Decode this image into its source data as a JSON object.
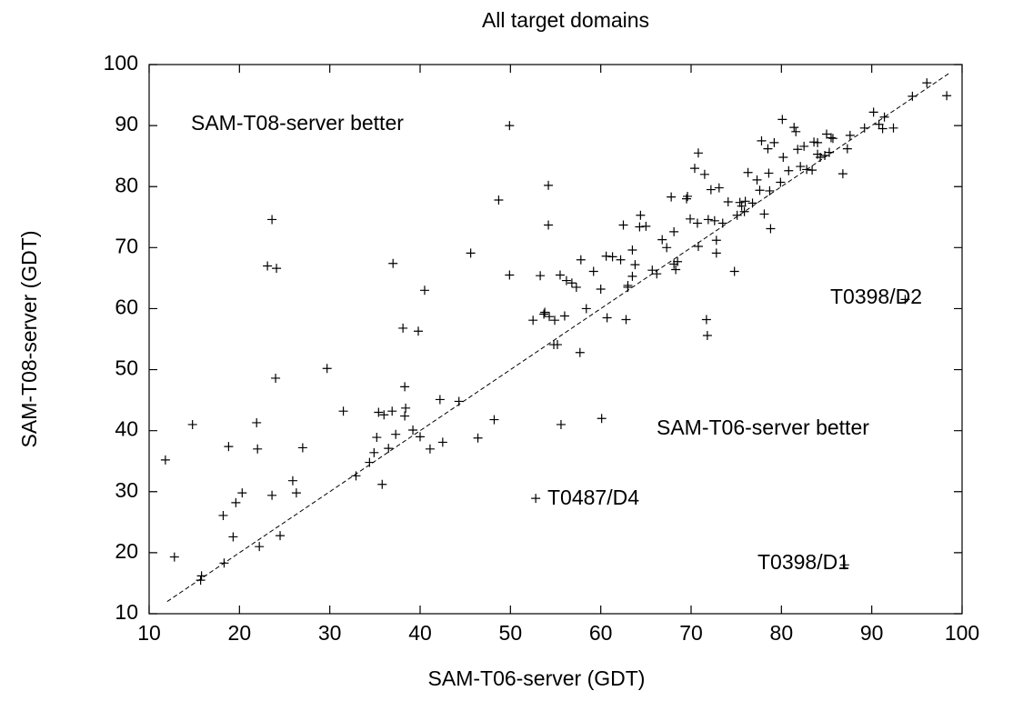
{
  "chart_data": {
    "type": "scatter",
    "title": "All target domains",
    "xlabel": "SAM-T06-server (GDT)",
    "ylabel": "SAM-T08-server (GDT)",
    "xlim": [
      10,
      100
    ],
    "ylim": [
      10,
      100
    ],
    "xticks": [
      10,
      20,
      30,
      40,
      50,
      60,
      70,
      80,
      90,
      100
    ],
    "yticks": [
      10,
      20,
      30,
      40,
      50,
      60,
      70,
      80,
      90,
      100
    ],
    "color": "#000000",
    "reference_line": {
      "x": [
        12,
        98.5
      ],
      "y": [
        12,
        98.5
      ]
    },
    "annotations": [
      "SAM-T08-server better",
      "SAM-T06-server better",
      "T0398/D2",
      "T0487/D4",
      "T0398/D1"
    ],
    "x": [
      11.8,
      12.8,
      14.8,
      15.7,
      15.8,
      18.2,
      18.3,
      18.8,
      19.3,
      19.6,
      20.3,
      21.9,
      22,
      22.2,
      23.1,
      23.6,
      23.6,
      24,
      24.1,
      24.5,
      25.9,
      26.3,
      27,
      29.7,
      31.5,
      32.9,
      34.4,
      34.9,
      35.2,
      35.4,
      35.8,
      36,
      36.5,
      36.9,
      37,
      37.3,
      38.1,
      38.3,
      38.3,
      38.4,
      39.2,
      39.8,
      40,
      40.5,
      41.1,
      42.2,
      42.5,
      44.3,
      45.6,
      46.4,
      48.2,
      48.7,
      49.9,
      49.9,
      52.5,
      52.8,
      53.3,
      53.7,
      53.8,
      54.2,
      54.2,
      54.3,
      54.8,
      54.9,
      55.2,
      55.5,
      55.6,
      56,
      56.2,
      56.8,
      57.3,
      57.8,
      57.7,
      58.4,
      59.2,
      60,
      60.1,
      60.6,
      60.7,
      61.3,
      62.2,
      62.5,
      62.8,
      63,
      63,
      63.5,
      63.5,
      63.8,
      64.3,
      64.4,
      65,
      65.7,
      66.2,
      66.8,
      67.3,
      67.8,
      68.1,
      68.1,
      68.3,
      68.5,
      69.5,
      69.6,
      69.9,
      70.4,
      70.7,
      70.8,
      70.8,
      71.5,
      71.7,
      71.8,
      71.9,
      72.2,
      72.6,
      72.8,
      72.8,
      73.1,
      73.5,
      74.1,
      74.8,
      75.1,
      75.4,
      75.6,
      75.9,
      76,
      76.3,
      76.8,
      77.3,
      77.6,
      77.8,
      78.1,
      78.5,
      78.6,
      78.7,
      78.8,
      79.2,
      79.9,
      80.1,
      80.2,
      80.8,
      81.4,
      81.6,
      81.8,
      82.1,
      82.5,
      82.8,
      83.4,
      83.6,
      84,
      84,
      84.3,
      84.8,
      85,
      85.3,
      85.5,
      85.7,
      86.8,
      87.3,
      87.6,
      87,
      89.2,
      90.2,
      90.8,
      91.2,
      91.4,
      92.4,
      93.7,
      94.5,
      96.1,
      98.3
    ],
    "y": [
      35.2,
      19.3,
      41,
      15.5,
      16.2,
      26.1,
      18.3,
      37.4,
      22.6,
      28.2,
      29.8,
      41.3,
      37,
      21,
      67,
      74.6,
      29.4,
      48.6,
      66.6,
      22.8,
      31.8,
      29.8,
      37.2,
      50.2,
      43.2,
      32.6,
      34.8,
      36.4,
      38.9,
      43,
      31.2,
      42.6,
      37.1,
      43.2,
      67.4,
      39.4,
      56.8,
      42.4,
      47.2,
      43.7,
      40.1,
      56.3,
      39,
      63,
      37,
      45.1,
      38.1,
      44.8,
      69.1,
      38.8,
      41.8,
      77.8,
      90,
      65.5,
      58.1,
      28.9,
      65.4,
      59.1,
      59.4,
      80.2,
      73.7,
      58.7,
      54.1,
      58.1,
      54.1,
      65.5,
      41,
      58.8,
      64.6,
      64.2,
      63.5,
      68,
      52.8,
      60,
      66.1,
      63.2,
      42,
      68.6,
      58.5,
      68.5,
      68,
      73.7,
      58.2,
      63.5,
      63.8,
      65.3,
      69.6,
      67.2,
      73.4,
      75.3,
      73.5,
      66.3,
      65.7,
      71.3,
      70,
      78.3,
      72.6,
      67.3,
      66.4,
      67.7,
      78,
      78.4,
      74.7,
      83,
      74,
      70.2,
      85.5,
      82,
      58.2,
      55.6,
      74.6,
      79.5,
      74.4,
      71.2,
      69.1,
      79.8,
      74,
      77.5,
      66.1,
      75.3,
      77.4,
      76.8,
      75.9,
      77.6,
      82.3,
      77.3,
      81.1,
      79.4,
      87.5,
      75.5,
      86.2,
      82.2,
      79.3,
      73.1,
      87.2,
      80.7,
      91,
      84.8,
      82.6,
      89.7,
      89,
      86.1,
      83.3,
      86.6,
      82.8,
      82.7,
      87.3,
      87.2,
      85.3,
      84.8,
      85.1,
      88.6,
      85.6,
      88,
      87.9,
      82.1,
      86.2,
      88.4,
      18,
      89.6,
      92.2,
      90.2,
      89.5,
      91.4,
      89.6,
      61.5,
      94.8,
      97,
      94.9
    ]
  }
}
